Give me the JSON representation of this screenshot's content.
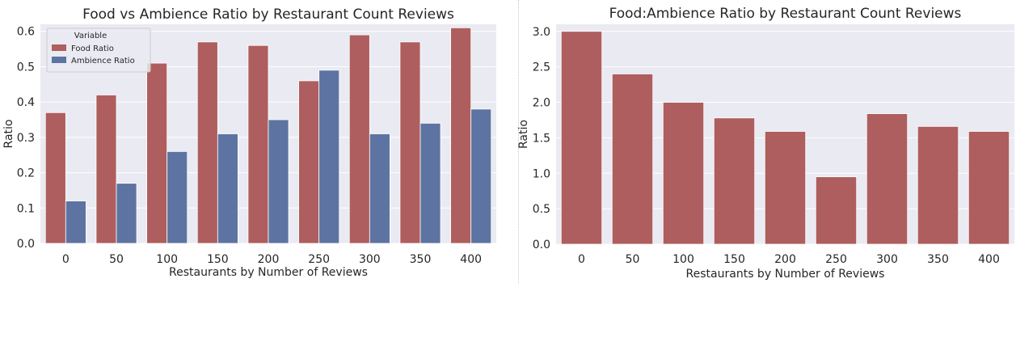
{
  "colors": {
    "panel_bg": "#eaeaf2",
    "grid": "#ffffff",
    "food": "#ae5e5e",
    "ambience": "#5d74a2",
    "text": "#262626"
  },
  "chart_data": [
    {
      "type": "bar",
      "title": "Food vs Ambience Ratio by Restaurant Count Reviews",
      "xlabel": "Restaurants by Number of Reviews",
      "ylabel": "Ratio",
      "categories": [
        "0",
        "50",
        "100",
        "150",
        "200",
        "250",
        "300",
        "350",
        "400"
      ],
      "ylim": [
        0,
        0.62
      ],
      "yticks": [
        "0.0",
        "0.1",
        "0.2",
        "0.3",
        "0.4",
        "0.5",
        "0.6"
      ],
      "grid": true,
      "legend": {
        "title": "Variable",
        "placement": "top-left"
      },
      "series": [
        {
          "name": "Food Ratio",
          "color": "#ae5e5e",
          "values": [
            0.37,
            0.42,
            0.51,
            0.57,
            0.56,
            0.46,
            0.59,
            0.57,
            0.61
          ]
        },
        {
          "name": "Ambience Ratio",
          "color": "#5d74a2",
          "values": [
            0.12,
            0.17,
            0.26,
            0.31,
            0.35,
            0.49,
            0.31,
            0.34,
            0.38
          ]
        }
      ]
    },
    {
      "type": "bar",
      "title": "Food:Ambience Ratio by Restaurant Count Reviews",
      "xlabel": "Restaurants by Number of Reviews",
      "ylabel": "Ratio",
      "categories": [
        "0",
        "50",
        "100",
        "150",
        "200",
        "250",
        "300",
        "350",
        "400"
      ],
      "ylim": [
        0,
        3.1
      ],
      "yticks": [
        "0.0",
        "0.5",
        "1.0",
        "1.5",
        "2.0",
        "2.5",
        "3.0"
      ],
      "grid": true,
      "series": [
        {
          "color": "#ae5e5e",
          "values": [
            3.0,
            2.4,
            2.0,
            1.78,
            1.59,
            0.95,
            1.84,
            1.66,
            1.59
          ]
        }
      ]
    }
  ]
}
